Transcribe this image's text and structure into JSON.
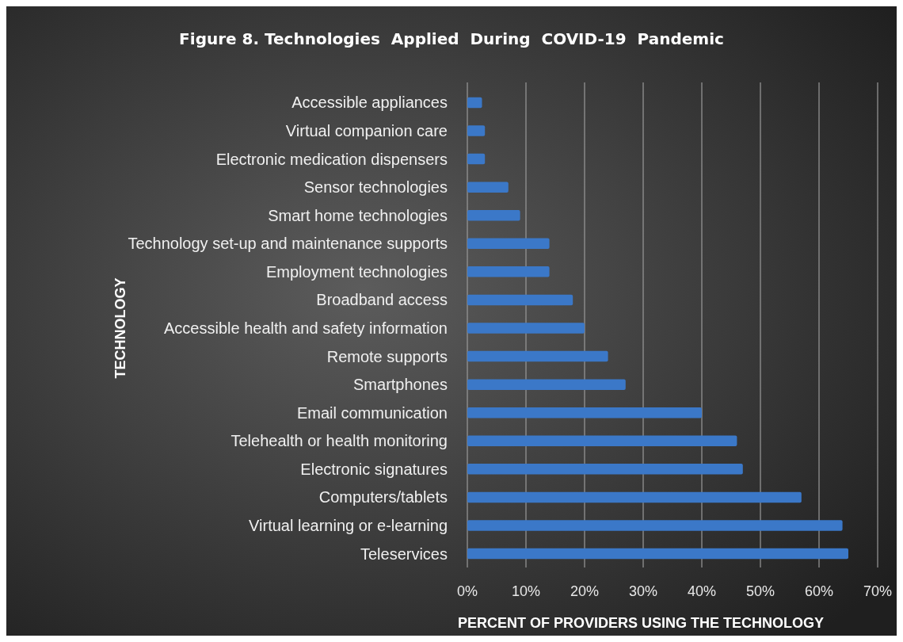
{
  "chart_data": {
    "type": "bar",
    "orientation": "horizontal",
    "title": "Figure 8. Technologies  Applied  During  COVID-19  Pandemic",
    "xlabel": "PERCENT OF PROVIDERS USING THE TECHNOLOGY",
    "ylabel": "TECHNOLOGY",
    "categories": [
      "Accessible appliances",
      "Virtual companion care",
      "Electronic medication dispensers",
      "Sensor technologies",
      "Smart home technologies",
      "Technology set-up and maintenance supports",
      "Employment technologies",
      "Broadband access",
      "Accessible health and safety information",
      "Remote supports",
      "Smartphones",
      "Email communication",
      "Telehealth or health monitoring",
      "Electronic signatures",
      "Computers/tablets",
      "Virtual learning or e-learning",
      "Teleservices"
    ],
    "values": [
      2.5,
      3,
      3,
      7,
      9,
      14,
      14,
      18,
      20,
      24,
      27,
      40,
      46,
      47,
      57,
      64,
      65
    ],
    "color": "#3b78c8",
    "xlim": [
      0,
      70
    ],
    "xticks": [
      {
        "value": 0,
        "label": "0%"
      },
      {
        "value": 10,
        "label": "10%"
      },
      {
        "value": 20,
        "label": "20%"
      },
      {
        "value": 30,
        "label": "30%"
      },
      {
        "value": 40,
        "label": "40%"
      },
      {
        "value": 50,
        "label": "50%"
      },
      {
        "value": 60,
        "label": "60%"
      },
      {
        "value": 70,
        "label": "70%"
      }
    ],
    "grid": "x"
  }
}
